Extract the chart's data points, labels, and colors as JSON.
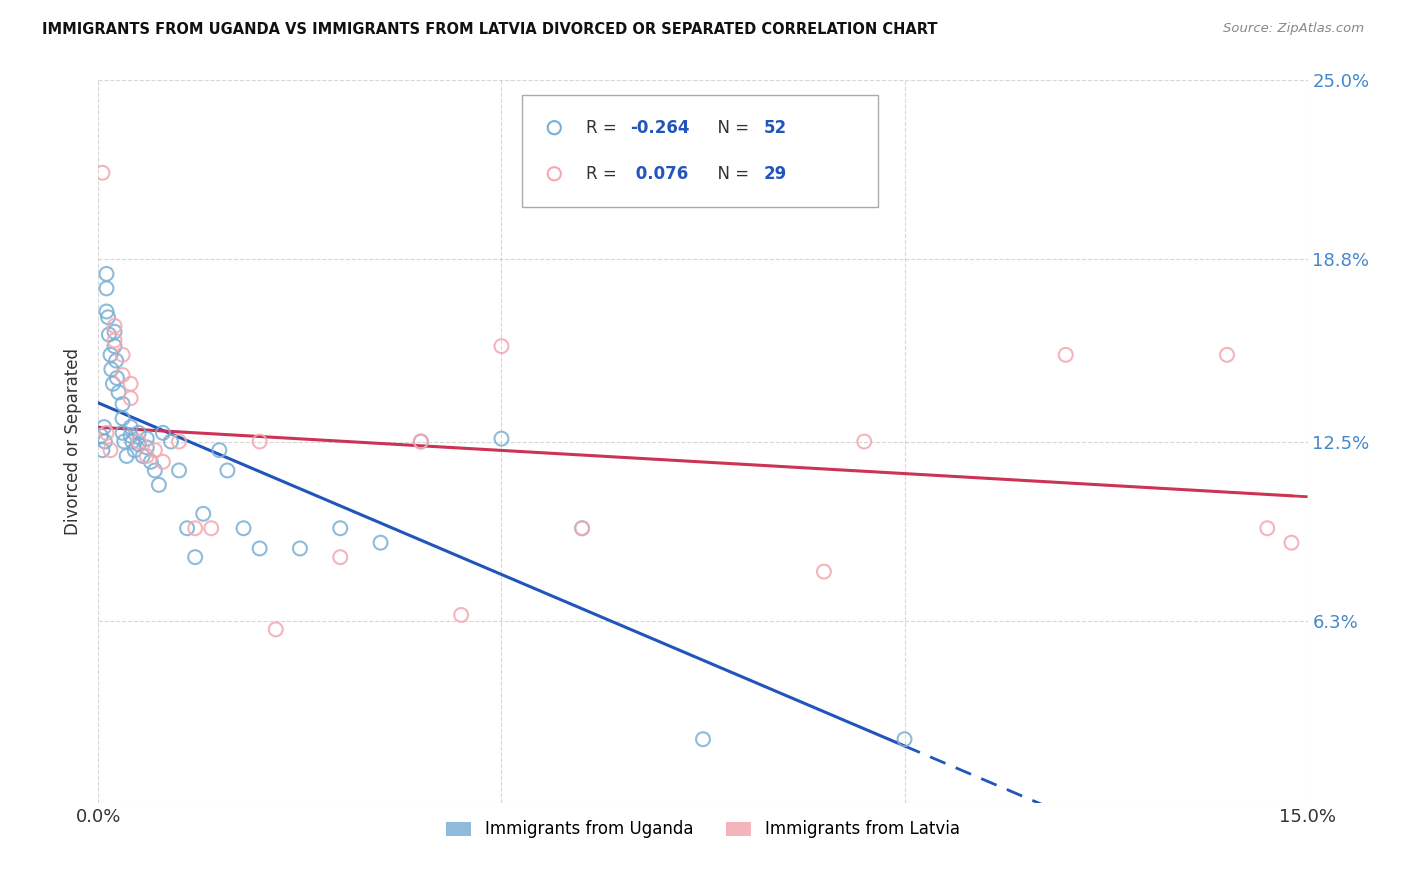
{
  "title": "IMMIGRANTS FROM UGANDA VS IMMIGRANTS FROM LATVIA DIVORCED OR SEPARATED CORRELATION CHART",
  "source": "Source: ZipAtlas.com",
  "ylabel": "Divorced or Separated",
  "xlim": [
    0.0,
    0.15
  ],
  "ylim": [
    0.0,
    0.25
  ],
  "ytick_vals": [
    0.0,
    0.063,
    0.125,
    0.188,
    0.25
  ],
  "ytick_labels": [
    "",
    "6.3%",
    "12.5%",
    "18.8%",
    "25.0%"
  ],
  "xtick_vals": [
    0.0,
    0.05,
    0.1,
    0.15
  ],
  "xtick_labels": [
    "0.0%",
    "",
    "",
    "15.0%"
  ],
  "legend_uganda": "Immigrants from Uganda",
  "legend_latvia": "Immigrants from Latvia",
  "R_uganda": -0.264,
  "N_uganda": 52,
  "R_latvia": 0.076,
  "N_latvia": 29,
  "color_uganda": "#7BAFD4",
  "color_latvia": "#F4A7B0",
  "line_color_uganda": "#2255BB",
  "line_color_latvia": "#CC3355",
  "uganda_x": [
    0.0003,
    0.0005,
    0.0007,
    0.0008,
    0.001,
    0.001,
    0.001,
    0.0012,
    0.0013,
    0.0015,
    0.0016,
    0.0018,
    0.002,
    0.002,
    0.0022,
    0.0023,
    0.0025,
    0.003,
    0.003,
    0.003,
    0.0032,
    0.0035,
    0.004,
    0.004,
    0.0042,
    0.0045,
    0.005,
    0.005,
    0.0055,
    0.006,
    0.006,
    0.0065,
    0.007,
    0.0075,
    0.008,
    0.009,
    0.01,
    0.011,
    0.012,
    0.013,
    0.015,
    0.016,
    0.018,
    0.02,
    0.025,
    0.03,
    0.035,
    0.04,
    0.05,
    0.06,
    0.075,
    0.1
  ],
  "uganda_y": [
    0.127,
    0.122,
    0.13,
    0.125,
    0.183,
    0.178,
    0.17,
    0.168,
    0.162,
    0.155,
    0.15,
    0.145,
    0.163,
    0.158,
    0.153,
    0.147,
    0.142,
    0.138,
    0.133,
    0.128,
    0.125,
    0.12,
    0.13,
    0.127,
    0.125,
    0.122,
    0.128,
    0.124,
    0.12,
    0.126,
    0.123,
    0.118,
    0.115,
    0.11,
    0.128,
    0.125,
    0.115,
    0.095,
    0.085,
    0.1,
    0.122,
    0.115,
    0.095,
    0.088,
    0.088,
    0.095,
    0.09,
    0.125,
    0.126,
    0.095,
    0.022,
    0.022
  ],
  "latvia_x": [
    0.0005,
    0.001,
    0.0015,
    0.002,
    0.002,
    0.003,
    0.003,
    0.004,
    0.004,
    0.005,
    0.006,
    0.007,
    0.008,
    0.01,
    0.012,
    0.014,
    0.02,
    0.022,
    0.03,
    0.04,
    0.045,
    0.05,
    0.06,
    0.09,
    0.095,
    0.12,
    0.14,
    0.145,
    0.148
  ],
  "latvia_y": [
    0.218,
    0.128,
    0.122,
    0.165,
    0.16,
    0.155,
    0.148,
    0.145,
    0.14,
    0.125,
    0.12,
    0.122,
    0.118,
    0.125,
    0.095,
    0.095,
    0.125,
    0.06,
    0.085,
    0.125,
    0.065,
    0.158,
    0.095,
    0.08,
    0.125,
    0.155,
    0.155,
    0.095,
    0.09
  ],
  "background_color": "#ffffff",
  "grid_color": "#cccccc"
}
